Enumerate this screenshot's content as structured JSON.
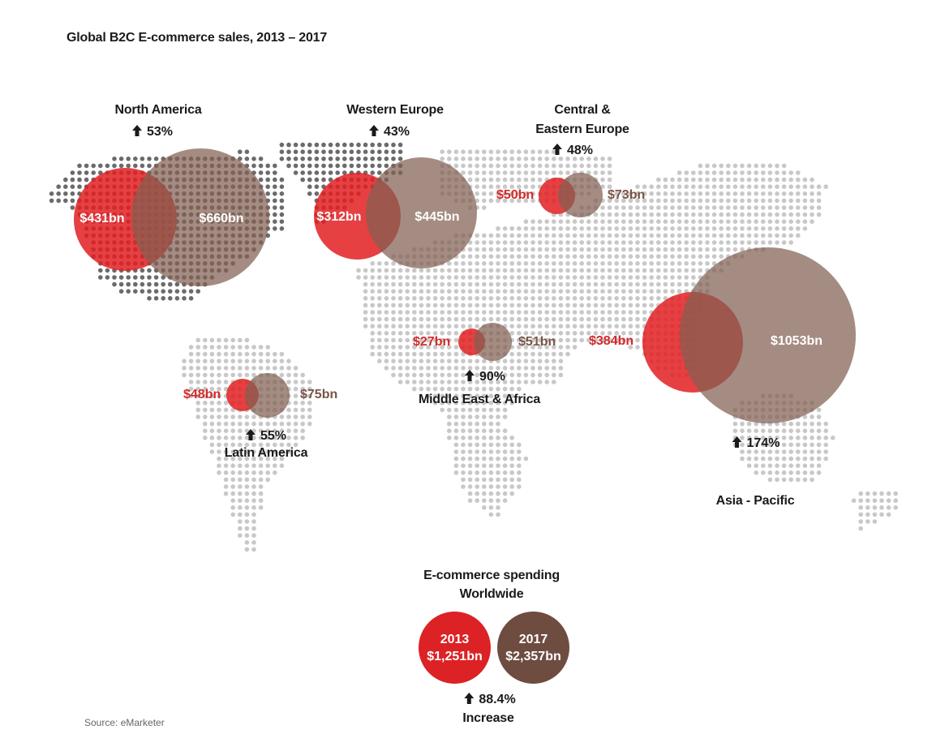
{
  "title": "Global B2C E-commerce sales, 2013 – 2017",
  "source": "Source: eMarketer",
  "colors": {
    "y2013": "#e21e22",
    "y2017": "#7f5f52",
    "map_dark": "#6b6b6b",
    "map_light": "#c8c8c8",
    "text": "#1a1a1a"
  },
  "regions": {
    "north_america": {
      "name": "North America",
      "growth": "53%",
      "v2013": "$431bn",
      "v2017": "$660bn"
    },
    "western_europe": {
      "name": "Western Europe",
      "growth": "43%",
      "v2013": "$312bn",
      "v2017": "$445bn"
    },
    "cee": {
      "name_line1": "Central &",
      "name_line2": "Eastern Europe",
      "growth": "48%",
      "v2013": "$50bn",
      "v2017": "$73bn"
    },
    "mea": {
      "name": "Middle East & Africa",
      "growth": "90%",
      "v2013": "$27bn",
      "v2017": "$51bn"
    },
    "latam": {
      "name": "Latin America",
      "growth": "55%",
      "v2013": "$48bn",
      "v2017": "$75bn"
    },
    "apac": {
      "name": "Asia - Pacific",
      "growth": "174%",
      "v2013": "$384bn",
      "v2017": "$1053bn"
    }
  },
  "worldwide": {
    "title_line1": "E-commerce spending",
    "title_line2": "Worldwide",
    "y2013_label": "2013",
    "y2013_value": "$1,251bn",
    "y2017_label": "2017",
    "y2017_value": "$2,357bn",
    "growth": "88.4%",
    "growth_label": "Increase"
  },
  "chart_data": {
    "type": "bubble-map",
    "title": "Global B2C E-commerce sales, 2013 – 2017",
    "unit": "USD billions",
    "categories": [
      "North America",
      "Western Europe",
      "Central & Eastern Europe",
      "Middle East & Africa",
      "Latin America",
      "Asia - Pacific"
    ],
    "series": [
      {
        "name": "2013",
        "color": "#e21e22",
        "values": [
          431,
          312,
          50,
          27,
          48,
          384
        ]
      },
      {
        "name": "2017",
        "color": "#7f5f52",
        "values": [
          660,
          445,
          73,
          51,
          75,
          1053
        ]
      }
    ],
    "growth_pct": [
      53,
      43,
      48,
      90,
      55,
      174
    ],
    "totals": {
      "2013": 1251,
      "2017": 2357,
      "growth_pct": 88.4
    },
    "source": "eMarketer"
  }
}
